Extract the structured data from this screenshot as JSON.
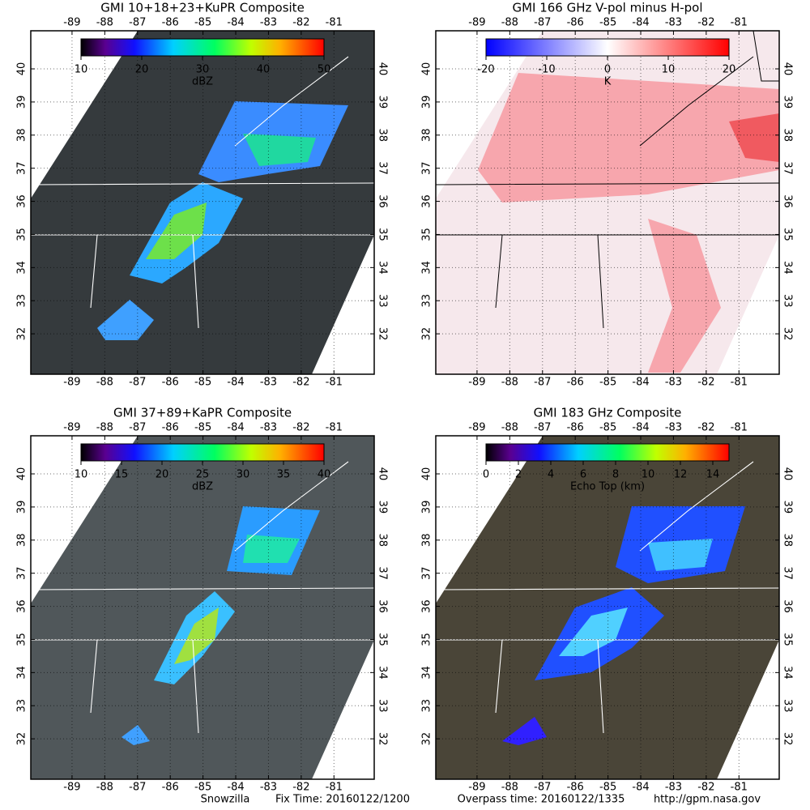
{
  "panels": [
    {
      "title": "GMI 10+18+23+KuPR Composite",
      "colormap": "rainbow",
      "background": "dark",
      "colorbar": {
        "range": [
          10,
          50
        ],
        "ticks": [
          10,
          20,
          30,
          40,
          50
        ],
        "label": "dBZ"
      },
      "lonlim": [
        -90.26,
        -79.77
      ],
      "latlim": [
        30.78,
        41.15
      ],
      "lon_ticks": [
        -89,
        -88,
        -87,
        -86,
        -85,
        -84,
        -83,
        -82,
        -81
      ],
      "lat_ticks": [
        32,
        33,
        34,
        35,
        36,
        37,
        38,
        39,
        40
      ]
    },
    {
      "title": "GMI 166 GHz V-pol minus H-pol",
      "colormap": "bwr",
      "background": "light",
      "colorbar": {
        "range": [
          -20,
          20
        ],
        "ticks": [
          -20,
          -10,
          0,
          10,
          20
        ],
        "label": "K"
      },
      "lonlim": [
        -90.26,
        -79.77
      ],
      "latlim": [
        30.78,
        41.15
      ],
      "lon_ticks": [
        -89,
        -88,
        -87,
        -86,
        -85,
        -84,
        -83,
        -82,
        -81
      ],
      "lat_ticks": [
        32,
        33,
        34,
        35,
        36,
        37,
        38,
        39,
        40
      ]
    },
    {
      "title": "GMI 37+89+KaPR Composite",
      "colormap": "rainbow",
      "background": "dark",
      "colorbar": {
        "range": [
          10,
          40
        ],
        "ticks": [
          10,
          15,
          20,
          25,
          30,
          35,
          40
        ],
        "label": "dBZ"
      },
      "lonlim": [
        -90.26,
        -79.77
      ],
      "latlim": [
        30.78,
        41.15
      ],
      "lon_ticks": [
        -89,
        -88,
        -87,
        -86,
        -85,
        -84,
        -83,
        -82,
        -81
      ],
      "lat_ticks": [
        32,
        33,
        34,
        35,
        36,
        37,
        38,
        39,
        40
      ]
    },
    {
      "title": "GMI 183 GHz Composite",
      "colormap": "rainbow",
      "background": "dark",
      "colorbar": {
        "range": [
          0,
          15
        ],
        "ticks": [
          0,
          2,
          4,
          6,
          8,
          10,
          12,
          14
        ],
        "label": "Echo Top (km)"
      },
      "lonlim": [
        -90.26,
        -79.77
      ],
      "latlim": [
        30.78,
        41.15
      ],
      "lon_ticks": [
        -89,
        -88,
        -87,
        -86,
        -85,
        -84,
        -83,
        -82,
        -81
      ],
      "lat_ticks": [
        32,
        33,
        34,
        35,
        36,
        37,
        38,
        39,
        40
      ]
    }
  ],
  "footer": {
    "event": "Snowzilla",
    "fix_time": "Fix Time: 20160122/1200",
    "overpass": "Overpass time: 20160122/1335",
    "url": "http://gpm.nasa.gov"
  }
}
